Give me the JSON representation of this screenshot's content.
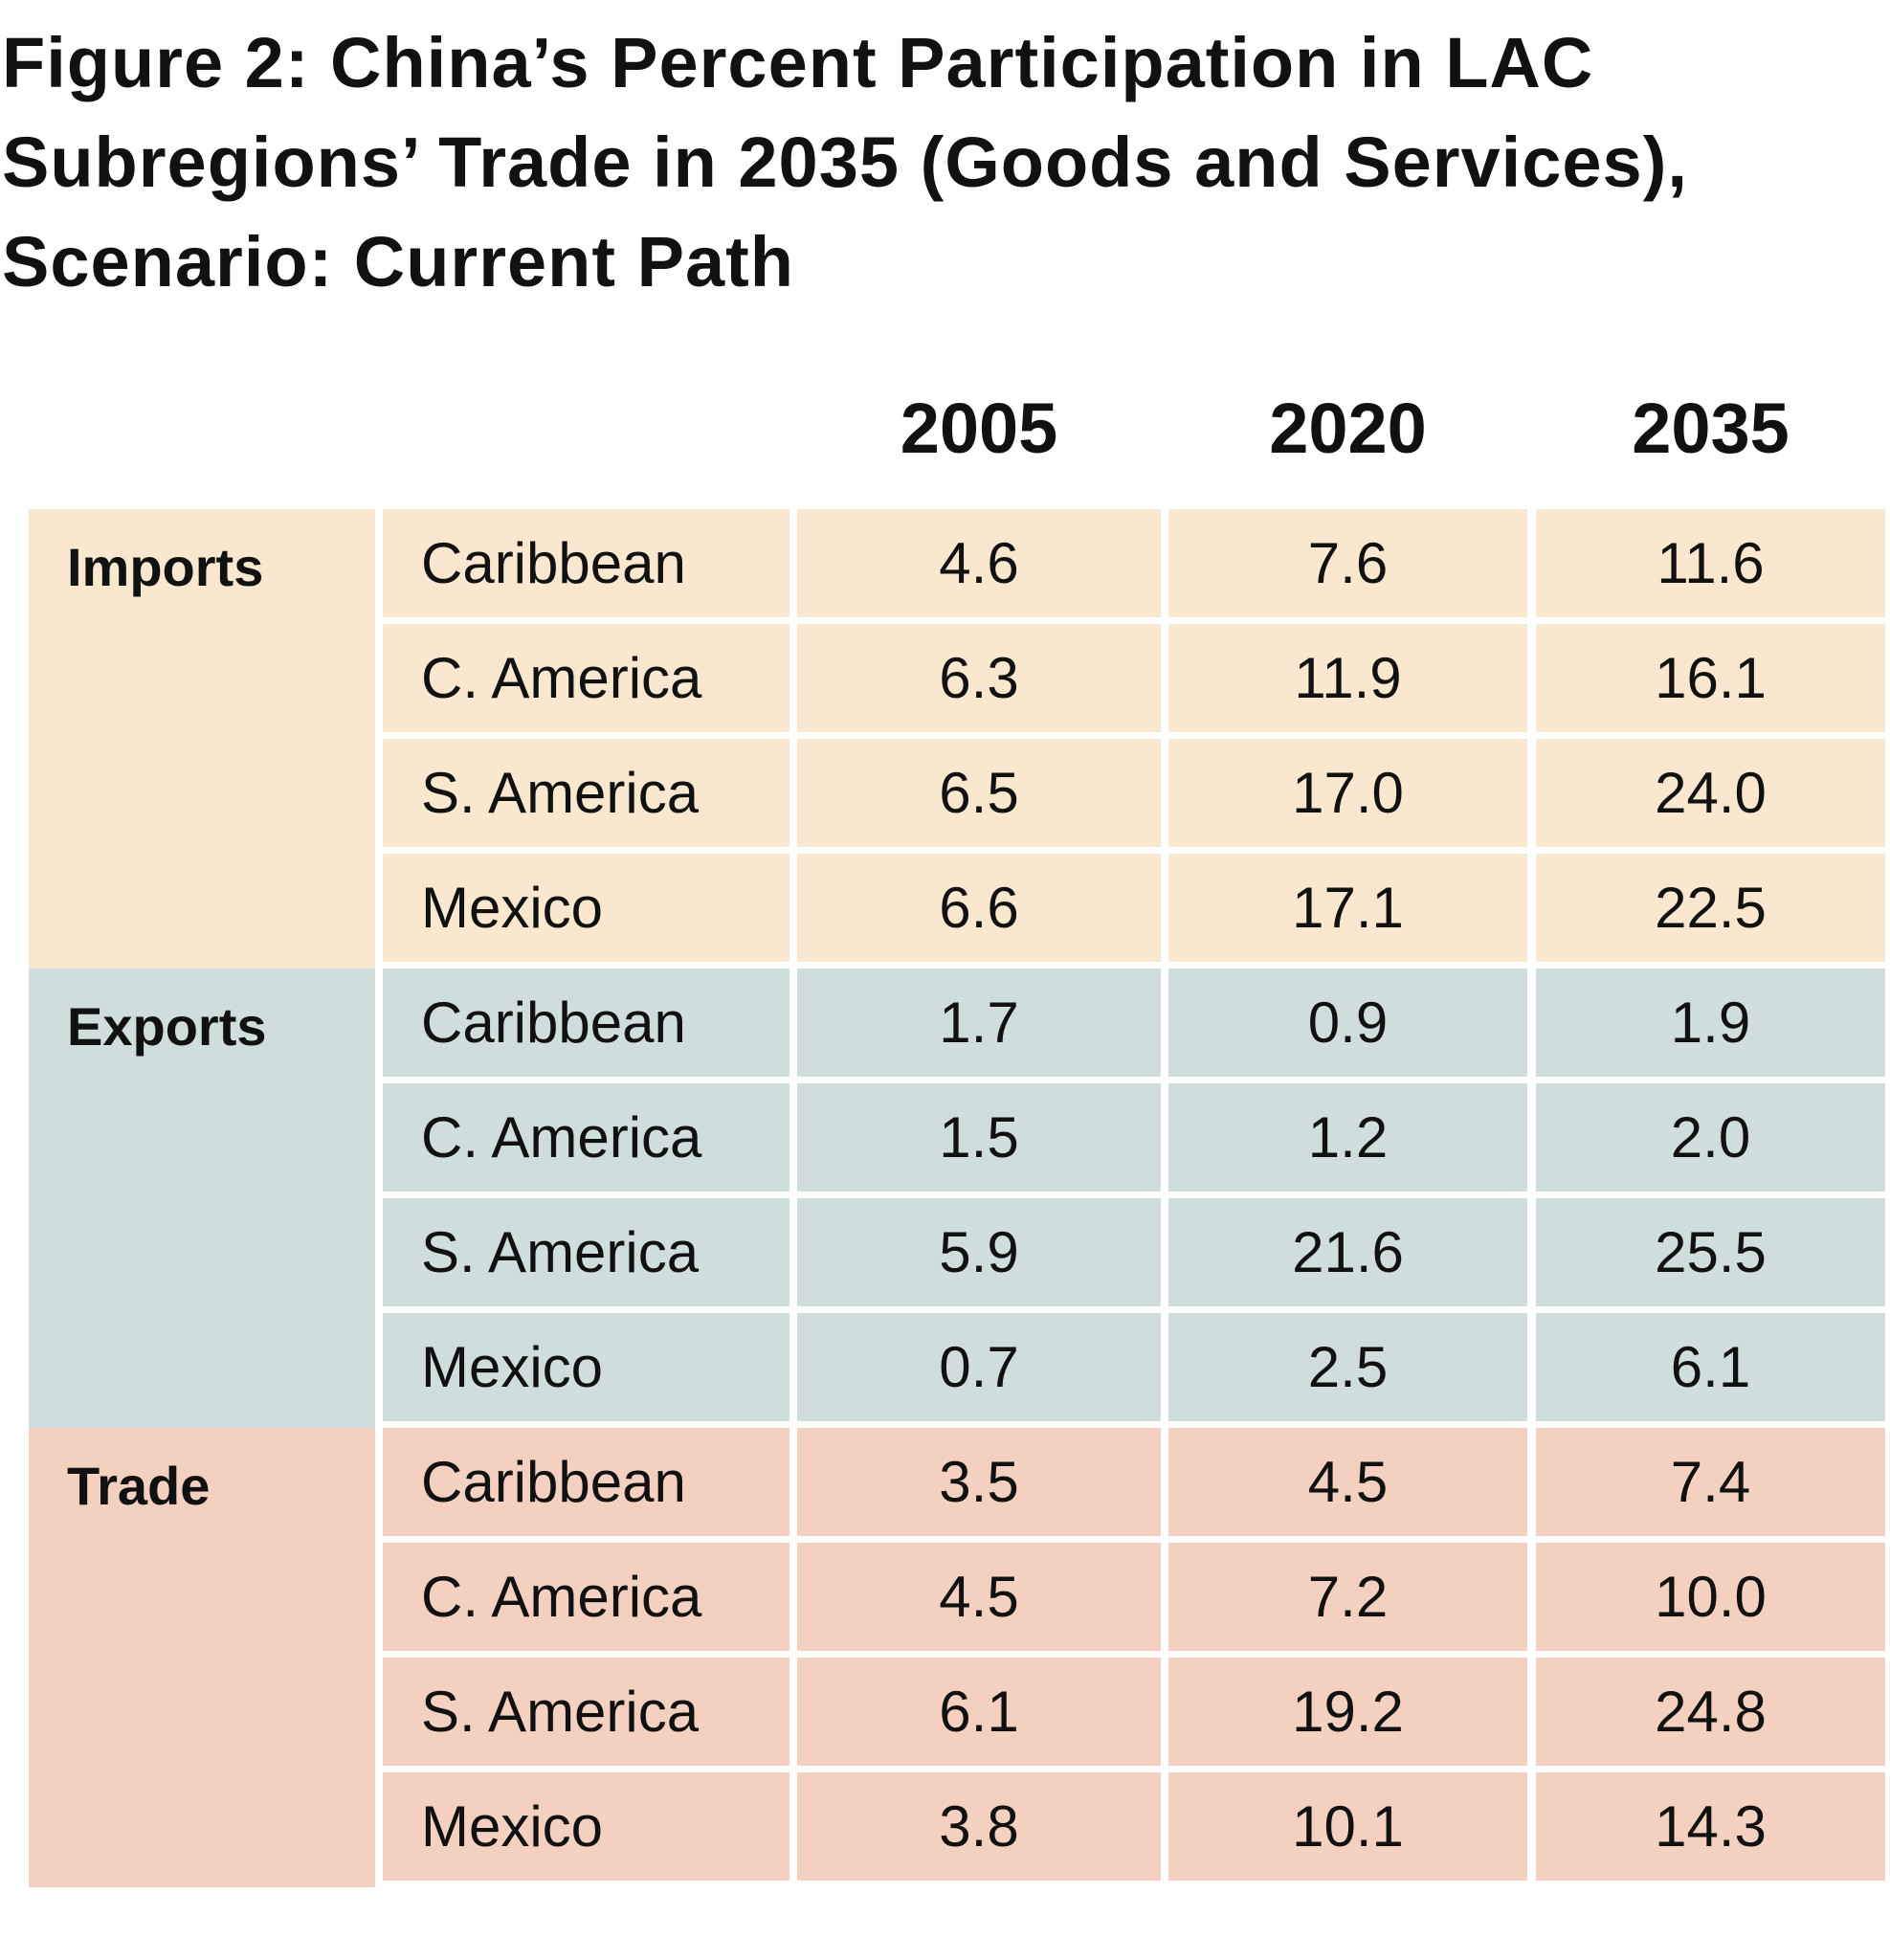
{
  "title": "Figure 2: China’s Percent Participation in LAC Subregions’ Trade in 2035 (Goods and Services), Scenario: Current Path",
  "table": {
    "columns": [
      "2005",
      "2020",
      "2035"
    ],
    "groups": [
      {
        "label": "Imports",
        "rows": [
          {
            "region": "Caribbean",
            "values": [
              "4.6",
              "7.6",
              "11.6"
            ]
          },
          {
            "region": "C. America",
            "values": [
              "6.3",
              "11.9",
              "16.1"
            ]
          },
          {
            "region": "S. America",
            "values": [
              "6.5",
              "17.0",
              "24.0"
            ]
          },
          {
            "region": "Mexico",
            "values": [
              "6.6",
              "17.1",
              "22.5"
            ]
          }
        ]
      },
      {
        "label": "Exports",
        "rows": [
          {
            "region": "Caribbean",
            "values": [
              "1.7",
              "0.9",
              "1.9"
            ]
          },
          {
            "region": "C. America",
            "values": [
              "1.5",
              "1.2",
              "2.0"
            ]
          },
          {
            "region": "S. America",
            "values": [
              "5.9",
              "21.6",
              "25.5"
            ]
          },
          {
            "region": "Mexico",
            "values": [
              "0.7",
              "2.5",
              "6.1"
            ]
          }
        ]
      },
      {
        "label": "Trade",
        "rows": [
          {
            "region": "Caribbean",
            "values": [
              "3.5",
              "4.5",
              "7.4"
            ]
          },
          {
            "region": "C. America",
            "values": [
              "4.5",
              "7.2",
              "10.0"
            ]
          },
          {
            "region": "S. America",
            "values": [
              "6.1",
              "19.2",
              "24.8"
            ]
          },
          {
            "region": "Mexico",
            "values": [
              "3.8",
              "10.1",
              "14.3"
            ]
          }
        ]
      }
    ]
  }
}
